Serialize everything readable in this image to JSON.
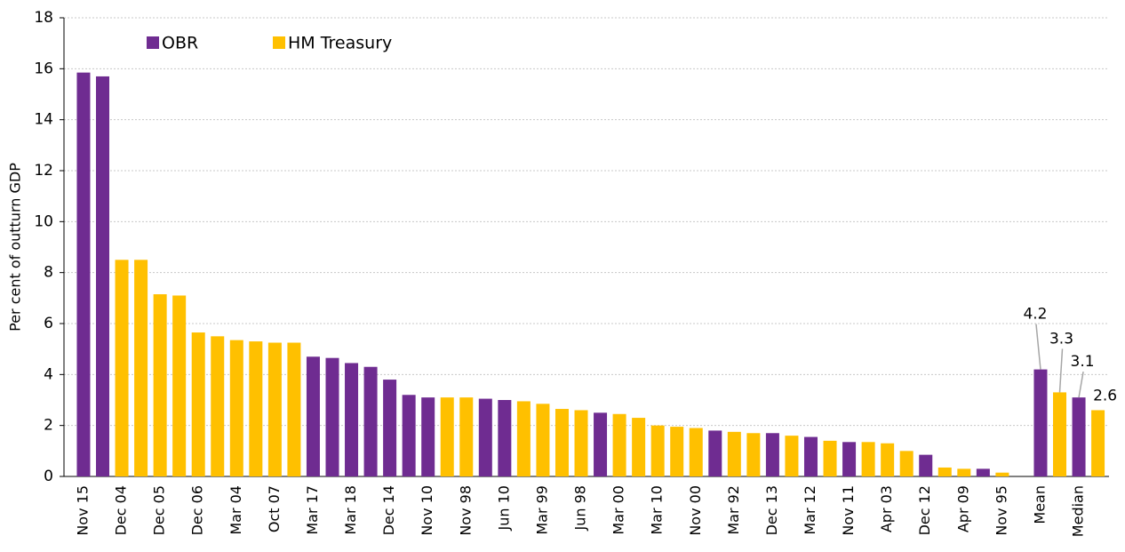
{
  "chart_data": {
    "type": "bar",
    "y_label": "Per cent of outturn GDP",
    "categories": [
      "Nov 15",
      null,
      "Dec 04",
      null,
      "Dec 05",
      null,
      "Dec 06",
      null,
      "Mar 04",
      null,
      "Oct 07",
      null,
      "Mar 17",
      null,
      "Mar 18",
      null,
      "Dec 14",
      null,
      "Nov 10",
      null,
      "Nov 98",
      null,
      "Jun 10",
      null,
      "Mar 99",
      null,
      "Jun 98",
      null,
      "Mar 00",
      null,
      "Mar 10",
      null,
      "Nov 00",
      null,
      "Mar 92",
      null,
      "Dec 13",
      null,
      "Mar 12",
      null,
      "Nov 11",
      null,
      "Apr 03",
      null,
      "Dec 12",
      null,
      "Apr 09",
      null,
      "Nov 95",
      null,
      "Mean",
      null,
      "Median",
      null
    ],
    "series": [
      {
        "name": "OBR",
        "color": "#6f2c91",
        "values": [
          15.85,
          15.7,
          null,
          null,
          null,
          null,
          null,
          null,
          null,
          null,
          null,
          null,
          4.7,
          4.65,
          4.45,
          4.3,
          3.8,
          3.2,
          3.1,
          null,
          null,
          3.05,
          3.0,
          null,
          null,
          null,
          null,
          2.5,
          null,
          null,
          null,
          null,
          null,
          1.8,
          null,
          null,
          1.7,
          null,
          1.55,
          null,
          1.35,
          null,
          null,
          null,
          0.85,
          null,
          null,
          0.3,
          null,
          null,
          4.2,
          null,
          3.1,
          null
        ],
        "value_labels": [
          null,
          null,
          null,
          null,
          null,
          null,
          null,
          null,
          null,
          null,
          null,
          null,
          null,
          null,
          null,
          null,
          null,
          null,
          null,
          null,
          null,
          null,
          null,
          null,
          null,
          null,
          null,
          null,
          null,
          null,
          null,
          null,
          null,
          null,
          null,
          null,
          null,
          null,
          null,
          null,
          null,
          null,
          null,
          null,
          null,
          null,
          null,
          null,
          null,
          null,
          "4.2",
          null,
          "3.1",
          null
        ]
      },
      {
        "name": "HM Treasury",
        "color": "#ffc000",
        "values": [
          null,
          null,
          8.5,
          8.5,
          7.15,
          7.1,
          5.65,
          5.5,
          5.35,
          5.3,
          5.25,
          5.25,
          null,
          null,
          null,
          null,
          null,
          null,
          null,
          3.1,
          3.1,
          null,
          null,
          2.95,
          2.85,
          2.65,
          2.6,
          null,
          2.45,
          2.3,
          2.0,
          1.95,
          1.9,
          null,
          1.75,
          1.7,
          null,
          1.6,
          null,
          1.4,
          null,
          1.35,
          1.3,
          1.0,
          null,
          0.35,
          0.3,
          null,
          0.15,
          null,
          null,
          3.3,
          null,
          2.6
        ],
        "value_labels": [
          null,
          null,
          null,
          null,
          null,
          null,
          null,
          null,
          null,
          null,
          null,
          null,
          null,
          null,
          null,
          null,
          null,
          null,
          null,
          null,
          null,
          null,
          null,
          null,
          null,
          null,
          null,
          null,
          null,
          null,
          null,
          null,
          null,
          null,
          null,
          null,
          null,
          null,
          null,
          null,
          null,
          null,
          null,
          null,
          null,
          null,
          null,
          null,
          null,
          null,
          null,
          "3.3",
          null,
          "2.6"
        ]
      }
    ],
    "ylim": [
      0,
      18
    ],
    "yticks": [
      0,
      2,
      4,
      6,
      8,
      10,
      12,
      14,
      16,
      18
    ],
    "grid": true,
    "legend": "top-left"
  }
}
